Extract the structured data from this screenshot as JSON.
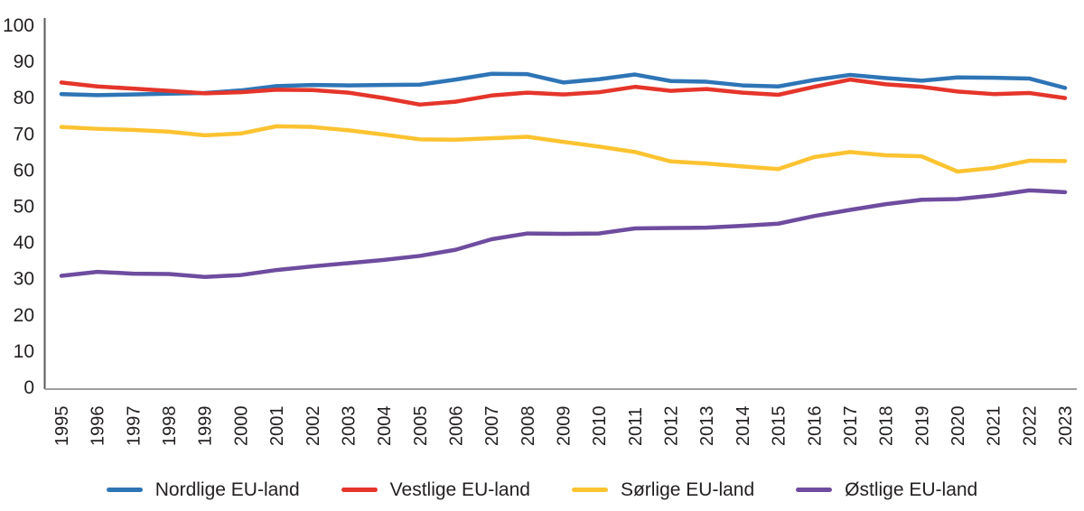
{
  "chart_data": {
    "type": "line",
    "title": "",
    "xlabel": "",
    "ylabel": "",
    "x": [
      1995,
      1996,
      1997,
      1998,
      1999,
      2000,
      2001,
      2002,
      2003,
      2004,
      2005,
      2006,
      2007,
      2008,
      2009,
      2010,
      2011,
      2012,
      2013,
      2014,
      2015,
      2016,
      2017,
      2018,
      2019,
      2020,
      2021,
      2022,
      2023
    ],
    "ylim": [
      0,
      100
    ],
    "yticks": [
      0,
      10,
      20,
      30,
      40,
      50,
      60,
      70,
      80,
      90,
      100
    ],
    "grid": false,
    "legend_position": "bottom",
    "series": [
      {
        "name": "Nordlige EU-land",
        "color": "#2E75B6",
        "values": [
          81,
          80.7,
          80.9,
          81.1,
          81.3,
          82,
          83.2,
          83.5,
          83.4,
          83.5,
          83.6,
          85,
          86.6,
          86.5,
          84.2,
          85.1,
          86.4,
          84.6,
          84.4,
          83.4,
          83.1,
          84.9,
          86.3,
          85.4,
          84.7,
          85.6,
          85.5,
          85.3,
          82.7
        ]
      },
      {
        "name": "Vestlige EU-land",
        "color": "#E5352B",
        "values": [
          84.2,
          83.1,
          82.5,
          81.9,
          81.2,
          81.5,
          82.2,
          82.1,
          81.4,
          79.9,
          78.1,
          78.9,
          80.6,
          81.4,
          80.9,
          81.5,
          83,
          81.9,
          82.4,
          81.4,
          80.8,
          83,
          85,
          83.7,
          83,
          81.7,
          81,
          81.3,
          79.9
        ]
      },
      {
        "name": "Sørlige EU-land",
        "color": "#FCC331",
        "values": [
          71.9,
          71.4,
          71.1,
          70.6,
          69.6,
          70.1,
          72.1,
          71.9,
          71,
          69.8,
          68.5,
          68.4,
          68.8,
          69.2,
          67.8,
          66.5,
          65,
          62.4,
          61.8,
          61,
          60.3,
          63.6,
          65,
          64.1,
          63.8,
          59.6,
          60.6,
          62.6,
          62.5
        ]
      },
      {
        "name": "Østlige EU-land",
        "color": "#6E4C9F",
        "values": [
          30.8,
          31.9,
          31.4,
          31.3,
          30.5,
          31,
          32.4,
          33.4,
          34.3,
          35.2,
          36.3,
          38,
          40.9,
          42.5,
          42.4,
          42.5,
          43.9,
          44,
          44.1,
          44.6,
          45.2,
          47.3,
          49,
          50.6,
          51.8,
          52,
          53,
          54.4,
          53.9
        ]
      }
    ],
    "axis_color_vertical": "#58595b",
    "axis_color_horizontal": "#9d9fa2",
    "text_color": "#231f20"
  }
}
